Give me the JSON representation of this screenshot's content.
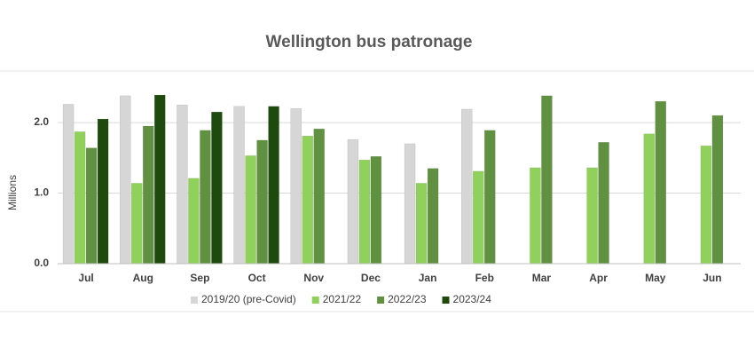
{
  "chart_data": {
    "type": "bar",
    "title": "Wellington bus patronage",
    "y_label": "Millions",
    "categories": [
      "Jul",
      "Aug",
      "Sep",
      "Oct",
      "Nov",
      "Dec",
      "Jan",
      "Feb",
      "Mar",
      "Apr",
      "May",
      "Jun"
    ],
    "series": [
      {
        "name": "2019/20 (pre-Covid)",
        "color": "#d6d6d6",
        "values": [
          2.26,
          2.38,
          2.25,
          2.23,
          2.2,
          1.76,
          1.7,
          2.19,
          null,
          null,
          null,
          null
        ]
      },
      {
        "name": "2021/22",
        "color": "#8fd15a",
        "values": [
          1.87,
          1.14,
          1.21,
          1.53,
          1.81,
          1.47,
          1.14,
          1.31,
          1.36,
          1.36,
          1.84,
          1.67
        ]
      },
      {
        "name": "2022/23",
        "color": "#5f9140",
        "values": [
          1.64,
          1.95,
          1.89,
          1.75,
          1.91,
          1.52,
          1.35,
          1.89,
          2.38,
          1.72,
          2.3,
          2.1
        ]
      },
      {
        "name": "2023/24",
        "color": "#1e4a0e",
        "values": [
          2.05,
          2.39,
          2.15,
          2.23,
          null,
          null,
          null,
          null,
          null,
          null,
          null,
          null
        ]
      }
    ],
    "ylim": [
      0,
      2.63
    ],
    "yticks": [
      {
        "value": 0,
        "label": "0.0"
      },
      {
        "value": 1,
        "label": "1.0"
      },
      {
        "value": 2,
        "label": "2.0"
      }
    ],
    "grid": true,
    "legend": "bottom"
  }
}
